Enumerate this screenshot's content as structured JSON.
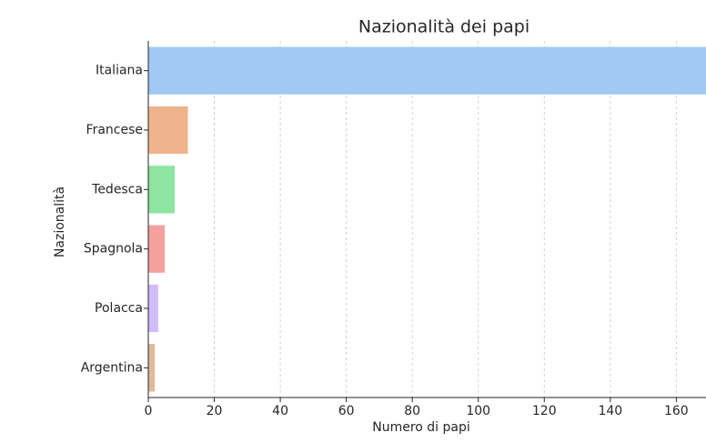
{
  "chart_data": {
    "type": "hbar",
    "title": "Nazionalità dei papi",
    "x_label": "Numero di papi",
    "y_label": "Nazionalità",
    "categories": [
      "Italiana",
      "Francese",
      "Tedesca",
      "Spagnola",
      "Polacca",
      "Argentina"
    ],
    "values": [
      169,
      12,
      8,
      5,
      3,
      2
    ],
    "colors": [
      "#a1c9f4",
      "#f0b48c",
      "#8de5a1",
      "#f4a09c",
      "#d0bbff",
      "#ddbb9b"
    ],
    "xlim": [
      0,
      169
    ],
    "xticks": [
      0,
      20,
      40,
      60,
      80,
      100,
      120,
      140,
      160
    ],
    "grid": true
  }
}
